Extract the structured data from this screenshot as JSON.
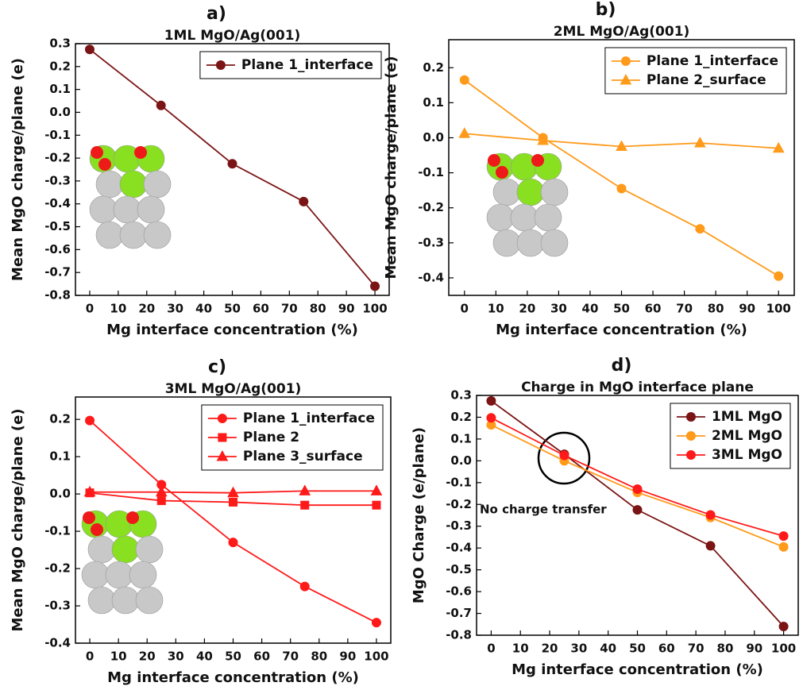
{
  "chart_data": [
    {
      "type": "line",
      "label": "a)",
      "title": "1ML MgO/Ag(001)",
      "x_label": "Mg interface concentration (%)",
      "y_label": "Mean MgO charge/plane (e)",
      "x": [
        0,
        25,
        50,
        75,
        100
      ],
      "series": [
        {
          "name": "Plane 1_interface",
          "color": "#7b1414",
          "marker": "circle",
          "values": [
            0.275,
            0.03,
            -0.225,
            -0.39,
            -0.76
          ]
        }
      ],
      "xlim": [
        -5,
        105
      ],
      "xticks": [
        0,
        10,
        20,
        30,
        40,
        50,
        60,
        70,
        80,
        90,
        100
      ],
      "ylim": [
        -0.8,
        0.3
      ],
      "yticks": [
        -0.8,
        -0.7,
        -0.6,
        -0.5,
        -0.4,
        -0.3,
        -0.2,
        -0.1,
        {
          "value": 0,
          "label": "0.0"
        },
        0.1,
        0.2,
        0.3
      ],
      "legend": "upper right"
    },
    {
      "type": "line",
      "label": "b)",
      "title": "2ML MgO/Ag(001)",
      "x_label": "Mg interface concentration (%)",
      "y_label": "Mean MgO charge/plane (e)",
      "x": [
        0,
        25,
        50,
        75,
        100
      ],
      "series": [
        {
          "name": "Plane 1_interface",
          "color": "#ff9a1a",
          "marker": "circle",
          "values": [
            0.165,
            0.0,
            -0.145,
            -0.26,
            -0.395
          ]
        },
        {
          "name": "Plane 2_surface",
          "color": "#ff9a1a",
          "marker": "triangle",
          "values": [
            0.012,
            -0.008,
            -0.025,
            -0.015,
            -0.03
          ]
        }
      ],
      "xlim": [
        -5,
        105
      ],
      "xticks": [
        0,
        10,
        20,
        30,
        40,
        50,
        60,
        70,
        80,
        90,
        100
      ],
      "ylim": [
        -0.45,
        0.28
      ],
      "yticks": [
        -0.4,
        -0.3,
        -0.2,
        -0.1,
        {
          "value": 0,
          "label": "0.0"
        },
        0.1,
        0.2
      ],
      "legend": "upper right"
    },
    {
      "type": "line",
      "label": "c)",
      "title": "3ML MgO/Ag(001)",
      "x_label": "Mg interface concentration (%)",
      "y_label": "Mean MgO charge/plane (e)",
      "x": [
        0,
        25,
        50,
        75,
        100
      ],
      "series": [
        {
          "name": "Plane 1_interface",
          "color": "#ff1a1a",
          "marker": "circle",
          "values": [
            0.197,
            0.025,
            -0.13,
            -0.248,
            -0.345
          ]
        },
        {
          "name": "Plane 2",
          "color": "#ff1a1a",
          "marker": "square",
          "values": [
            0.003,
            -0.018,
            -0.022,
            -0.03,
            -0.03
          ]
        },
        {
          "name": "Plane 3_surface",
          "color": "#ff1a1a",
          "marker": "triangle",
          "values": [
            0.005,
            0.005,
            0.003,
            0.008,
            0.008
          ]
        }
      ],
      "xlim": [
        -5,
        105
      ],
      "xticks": [
        0,
        10,
        20,
        30,
        40,
        50,
        60,
        70,
        80,
        90,
        100
      ],
      "ylim": [
        -0.4,
        0.26
      ],
      "yticks": [
        -0.4,
        -0.3,
        -0.2,
        -0.1,
        {
          "value": 0,
          "label": "0.0"
        },
        0.1,
        0.2
      ],
      "legend": "upper right"
    },
    {
      "type": "line",
      "label": "d)",
      "title": "Charge in MgO interface plane",
      "x_label": "Mg interface concentration (%)",
      "y_label": "MgO Charge (e/plane)",
      "annotation": "No charge transfer",
      "x": [
        0,
        25,
        50,
        75,
        100
      ],
      "series": [
        {
          "name": "1ML MgO",
          "color": "#7b1414",
          "marker": "circle",
          "values": [
            0.275,
            0.03,
            -0.225,
            -0.39,
            -0.76
          ]
        },
        {
          "name": "2ML MgO",
          "color": "#ff9a1a",
          "marker": "circle",
          "values": [
            0.165,
            0.0,
            -0.145,
            -0.26,
            -0.395
          ]
        },
        {
          "name": "3ML MgO",
          "color": "#ff1a1a",
          "marker": "circle",
          "values": [
            0.197,
            0.025,
            -0.13,
            -0.248,
            -0.345
          ]
        }
      ],
      "xlim": [
        -5,
        105
      ],
      "xticks": [
        0,
        10,
        20,
        30,
        40,
        50,
        60,
        70,
        80,
        90,
        100
      ],
      "ylim": [
        -0.8,
        0.3
      ],
      "yticks": [
        -0.8,
        -0.7,
        -0.6,
        -0.5,
        -0.4,
        -0.3,
        -0.2,
        -0.1,
        {
          "value": 0,
          "label": "0.0"
        },
        0.1,
        0.2,
        0.3
      ],
      "legend": "upper right"
    }
  ]
}
